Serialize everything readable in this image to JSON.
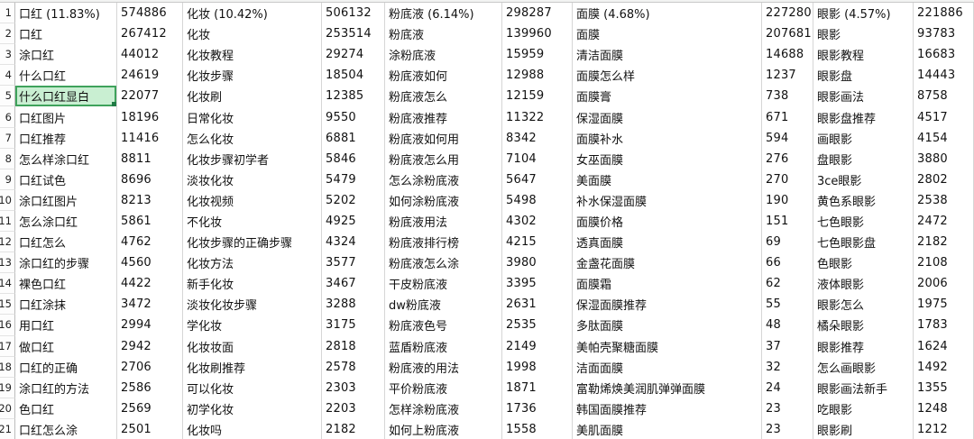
{
  "sheet": {
    "selected_cell": {
      "row_number": "5",
      "column": "A",
      "value": "什么口红显白"
    },
    "colors": {
      "selection_fill": "#c9efd2",
      "selection_border": "#3fa25c",
      "fill_handle": "#1f7a44",
      "gridline": "#d6d6d6",
      "background": "#ffffff"
    }
  },
  "rows": [
    {
      "n": "1",
      "cells": [
        "口红 (11.83%)",
        "574886",
        "化妆 (10.42%)",
        "506132",
        "粉底液 (6.14%)",
        "298287",
        "面膜 (4.68%)",
        "227280",
        "眼影 (4.57%)",
        "221886"
      ]
    },
    {
      "n": "2",
      "cells": [
        "口红",
        "267412",
        "化妆",
        "253514",
        "粉底液",
        "139960",
        "面膜",
        "207681",
        "眼影",
        "93783"
      ]
    },
    {
      "n": "3",
      "cells": [
        "涂口红",
        "44012",
        "化妆教程",
        "29274",
        "涂粉底液",
        "15959",
        "清洁面膜",
        "14688",
        "眼影教程",
        "16683"
      ]
    },
    {
      "n": "4",
      "cells": [
        "什么口红",
        "24619",
        "化妆步骤",
        "18504",
        "粉底液如何",
        "12988",
        "面膜怎么样",
        "1237",
        "眼影盘",
        "14443"
      ]
    },
    {
      "n": "5",
      "cells": [
        "什么口红显白",
        "22077",
        "化妆刷",
        "12385",
        "粉底液怎么",
        "12159",
        "面膜膏",
        "738",
        "眼影画法",
        "8758"
      ]
    },
    {
      "n": "6",
      "cells": [
        "口红图片",
        "18196",
        "日常化妆",
        "9550",
        "粉底液推荐",
        "11322",
        "保湿面膜",
        "671",
        "眼影盘推荐",
        "4517"
      ]
    },
    {
      "n": "7",
      "cells": [
        "口红推荐",
        "11416",
        "怎么化妆",
        "6881",
        "粉底液如何用",
        "8342",
        "面膜补水",
        "594",
        "画眼影",
        "4154"
      ]
    },
    {
      "n": "8",
      "cells": [
        "怎么样涂口红",
        "8811",
        "化妆步骤初学者",
        "5846",
        "粉底液怎么用",
        "7104",
        "女巫面膜",
        "276",
        "盘眼影",
        "3880"
      ]
    },
    {
      "n": "9",
      "cells": [
        "口红试色",
        "8696",
        "淡妆化妆",
        "5479",
        "怎么涂粉底液",
        "5647",
        "美面膜",
        "270",
        "3ce眼影",
        "2802"
      ]
    },
    {
      "n": "10",
      "cells": [
        "涂口红图片",
        "8213",
        "化妆视频",
        "5202",
        "如何涂粉底液",
        "5498",
        "补水保湿面膜",
        "190",
        "黄色系眼影",
        "2538"
      ]
    },
    {
      "n": "11",
      "cells": [
        "怎么涂口红",
        "5861",
        "不化妆",
        "4925",
        "粉底液用法",
        "4302",
        "面膜价格",
        "151",
        "七色眼影",
        "2472"
      ]
    },
    {
      "n": "12",
      "cells": [
        "口红怎么",
        "4762",
        "化妆步骤的正确步骤",
        "4324",
        "粉底液排行榜",
        "4215",
        "透真面膜",
        "69",
        "七色眼影盘",
        "2182"
      ]
    },
    {
      "n": "13",
      "cells": [
        "涂口红的步骤",
        "4560",
        "化妆方法",
        "3577",
        "粉底液怎么涂",
        "3980",
        "金盏花面膜",
        "66",
        "色眼影",
        "2108"
      ]
    },
    {
      "n": "14",
      "cells": [
        "裸色口红",
        "4422",
        "新手化妆",
        "3467",
        "干皮粉底液",
        "3395",
        "面膜霜",
        "62",
        "液体眼影",
        "2006"
      ]
    },
    {
      "n": "15",
      "cells": [
        "口红涂抹",
        "3472",
        "淡妆化妆步骤",
        "3288",
        "dw粉底液",
        "2631",
        "保湿面膜推荐",
        "55",
        "眼影怎么",
        "1975"
      ]
    },
    {
      "n": "16",
      "cells": [
        "用口红",
        "2994",
        "学化妆",
        "3175",
        "粉底液色号",
        "2535",
        "多肽面膜",
        "48",
        "橘朵眼影",
        "1783"
      ]
    },
    {
      "n": "17",
      "cells": [
        "做口红",
        "2942",
        "化妆妆面",
        "2818",
        "蓝盾粉底液",
        "2149",
        "美帕壳聚糖面膜",
        "37",
        "眼影推荐",
        "1624"
      ]
    },
    {
      "n": "18",
      "cells": [
        "口红的正确",
        "2706",
        "化妆刷推荐",
        "2578",
        "粉底液的用法",
        "1998",
        "洁面面膜",
        "32",
        "怎么画眼影",
        "1492"
      ]
    },
    {
      "n": "19",
      "cells": [
        "涂口红的方法",
        "2586",
        "可以化妆",
        "2303",
        "平价粉底液",
        "1871",
        "富勒烯焕美润肌弹弹面膜",
        "24",
        "眼影画法新手",
        "1355"
      ]
    },
    {
      "n": "20",
      "cells": [
        "色口红",
        "2569",
        "初学化妆",
        "2203",
        "怎样涂粉底液",
        "1736",
        "韩国面膜推荐",
        "23",
        "吃眼影",
        "1248"
      ]
    },
    {
      "n": "21",
      "cells": [
        "口红怎么涂",
        "2501",
        "化妆吗",
        "2182",
        "如何上粉底液",
        "1558",
        "美肌面膜",
        "23",
        "眼影刷",
        "1212"
      ]
    }
  ]
}
